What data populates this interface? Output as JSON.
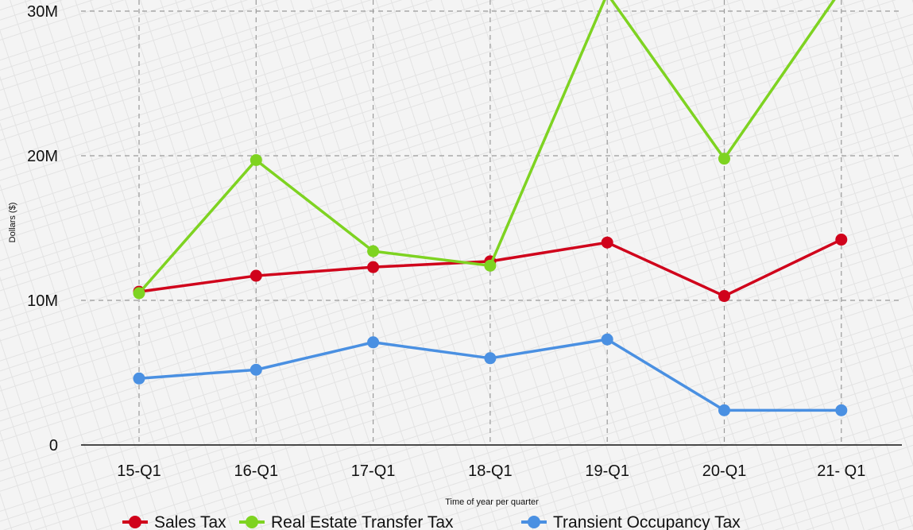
{
  "chart_data": {
    "type": "line",
    "categories": [
      "15-Q1",
      "16-Q1",
      "17-Q1",
      "18-Q1",
      "19-Q1",
      "20-Q1",
      "21- Q1"
    ],
    "series": [
      {
        "name": "Sales Tax",
        "color": "#d0021b",
        "values": [
          10.6,
          11.7,
          12.3,
          12.7,
          14.0,
          10.3,
          14.2
        ]
      },
      {
        "name": "Real Estate Transfer Tax",
        "color": "#7ed321",
        "values": [
          10.5,
          19.7,
          13.4,
          12.4,
          31.2,
          19.8,
          31.5
        ]
      },
      {
        "name": "Transient Occupancy Tax",
        "color": "#4a90e2",
        "values": [
          4.6,
          5.2,
          7.1,
          6.0,
          7.3,
          2.4,
          2.4
        ]
      }
    ],
    "yticks": [
      {
        "value": 0,
        "label": "0"
      },
      {
        "value": 10,
        "label": "10M"
      },
      {
        "value": 20,
        "label": "20M"
      },
      {
        "value": 30,
        "label": "30M"
      }
    ],
    "ylim": [
      0,
      31.2
    ],
    "xlabel": "Time of year per quarter",
    "ylabel": "Dollars ($)",
    "grid": true,
    "legend_position": "bottom-center"
  }
}
